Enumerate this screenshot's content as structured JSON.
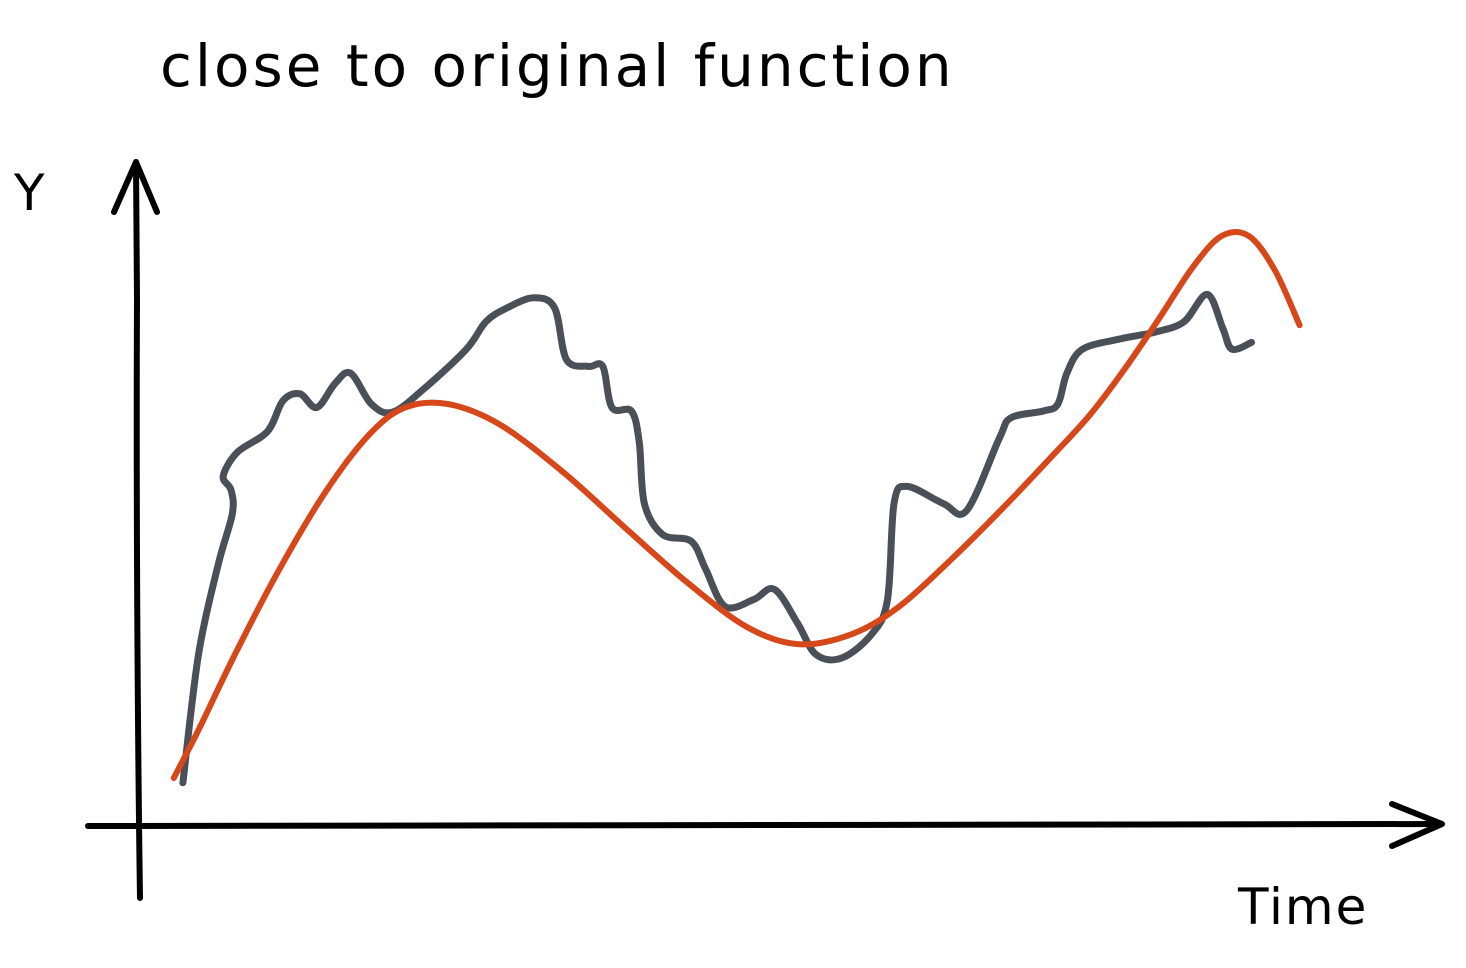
{
  "chart_data": {
    "type": "line",
    "title": "close to original function",
    "xlabel": "Time",
    "ylabel": "Y",
    "xlim": [
      0,
      100
    ],
    "ylim": [
      0,
      100
    ],
    "grid": false,
    "legend": "none",
    "series": [
      {
        "color": "#4a5057",
        "stroke": 7,
        "points": [
          [
            3.3,
            6.3
          ],
          [
            4.5,
            25
          ],
          [
            6.0,
            38
          ],
          [
            7.1,
            45.5
          ],
          [
            7.0,
            49
          ],
          [
            6.4,
            51
          ],
          [
            7.5,
            54.5
          ],
          [
            9.8,
            57.5
          ],
          [
            11.0,
            62
          ],
          [
            12.3,
            63
          ],
          [
            13.6,
            61
          ],
          [
            15.0,
            64.5
          ],
          [
            16.2,
            66
          ],
          [
            17.8,
            61.5
          ],
          [
            19.4,
            60.3
          ],
          [
            21.7,
            63.5
          ],
          [
            25.1,
            69.5
          ],
          [
            26.6,
            73.5
          ],
          [
            28.2,
            75.5
          ],
          [
            30.3,
            77
          ],
          [
            31.9,
            75.5
          ],
          [
            32.8,
            68
          ],
          [
            34.5,
            67
          ],
          [
            35.6,
            67
          ],
          [
            36.3,
            61
          ],
          [
            37.8,
            60.5
          ],
          [
            38.4,
            56
          ],
          [
            38.8,
            47
          ],
          [
            40.2,
            42.5
          ],
          [
            42.4,
            41.5
          ],
          [
            43.5,
            37.5
          ],
          [
            45.0,
            32
          ],
          [
            47.2,
            33
          ],
          [
            48.8,
            34.5
          ],
          [
            50.6,
            29.5
          ],
          [
            52.0,
            25
          ],
          [
            54.0,
            24.5
          ],
          [
            56.3,
            28
          ],
          [
            57.5,
            33
          ],
          [
            58.0,
            47
          ],
          [
            59.0,
            49.5
          ],
          [
            61.8,
            47
          ],
          [
            63.6,
            46
          ],
          [
            66.1,
            56.5
          ],
          [
            67.0,
            59.5
          ],
          [
            69.5,
            60.5
          ],
          [
            70.6,
            61.5
          ],
          [
            71.3,
            66
          ],
          [
            72.5,
            69.5
          ],
          [
            75.4,
            71
          ],
          [
            78.1,
            72
          ],
          [
            80.3,
            73.5
          ],
          [
            82.1,
            77.5
          ],
          [
            83.3,
            72.5
          ],
          [
            84.0,
            69.5
          ],
          [
            85.5,
            70.5
          ]
        ]
      },
      {
        "color": "#d6481a",
        "stroke": 6,
        "points": [
          [
            2.6,
            7
          ],
          [
            4.5,
            14
          ],
          [
            7.3,
            25
          ],
          [
            10.6,
            37
          ],
          [
            14.2,
            48.5
          ],
          [
            17.6,
            57
          ],
          [
            20.4,
            61
          ],
          [
            23.7,
            61.5
          ],
          [
            27.7,
            58.5
          ],
          [
            32.6,
            51.5
          ],
          [
            37.3,
            43.5
          ],
          [
            42.1,
            35.5
          ],
          [
            46.7,
            29
          ],
          [
            50.7,
            26.5
          ],
          [
            54.8,
            28
          ],
          [
            58.4,
            32
          ],
          [
            62.2,
            38.5
          ],
          [
            66.2,
            46
          ],
          [
            70.2,
            54
          ],
          [
            73.1,
            60
          ],
          [
            75.7,
            66.5
          ],
          [
            78.4,
            74
          ],
          [
            81.0,
            81.5
          ],
          [
            83.2,
            86
          ],
          [
            85.3,
            86
          ],
          [
            87.3,
            81
          ],
          [
            89.2,
            73
          ]
        ]
      }
    ]
  }
}
